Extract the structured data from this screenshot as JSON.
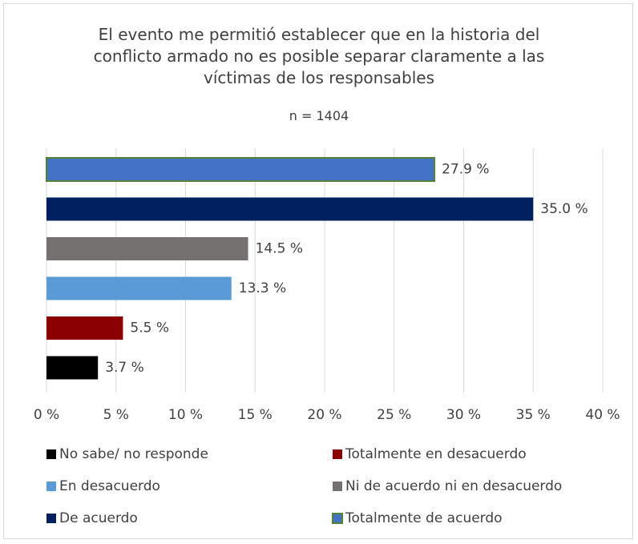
{
  "chart_data": {
    "type": "bar",
    "orientation": "horizontal",
    "title": "El evento me permitió establecer que en la historia del conflicto armado no es posible separar claramente a las víctimas de los responsables",
    "subtitle": "n = 1404",
    "series": [
      {
        "name": "No sabe/ no responde",
        "color": "#000000",
        "values": [
          3.7
        ],
        "value_labels": [
          "3.7 %"
        ]
      },
      {
        "name": "Totalmente en desacuerdo",
        "color": "#8b0000",
        "values": [
          5.5
        ],
        "value_labels": [
          "5.5 %"
        ]
      },
      {
        "name": "En desacuerdo",
        "color": "#5b9bd5",
        "values": [
          13.3
        ],
        "value_labels": [
          "13.3 %"
        ]
      },
      {
        "name": "Ni de acuerdo ni en desacuerdo",
        "color": "#767171",
        "values": [
          14.5
        ],
        "value_labels": [
          "14.5 %"
        ]
      },
      {
        "name": "De acuerdo",
        "color": "#002060",
        "values": [
          35.0
        ],
        "value_labels": [
          "35.0 %"
        ]
      },
      {
        "name": "Totalmente de acuerdo",
        "color": "#4472c4",
        "border_color": "#548235",
        "values": [
          27.9
        ],
        "value_labels": [
          "27.9 %"
        ]
      }
    ],
    "xlim": [
      0,
      40
    ],
    "xticks": [
      {
        "value": 0,
        "label": "0 %"
      },
      {
        "value": 5,
        "label": "5 %"
      },
      {
        "value": 10,
        "label": "10 %"
      },
      {
        "value": 15,
        "label": "15 %"
      },
      {
        "value": 20,
        "label": "20 %"
      },
      {
        "value": 25,
        "label": "25 %"
      },
      {
        "value": 30,
        "label": "30 %"
      },
      {
        "value": 35,
        "label": "35 %"
      },
      {
        "value": 40,
        "label": "40 %"
      }
    ],
    "grid": true,
    "legend": "bottom"
  }
}
